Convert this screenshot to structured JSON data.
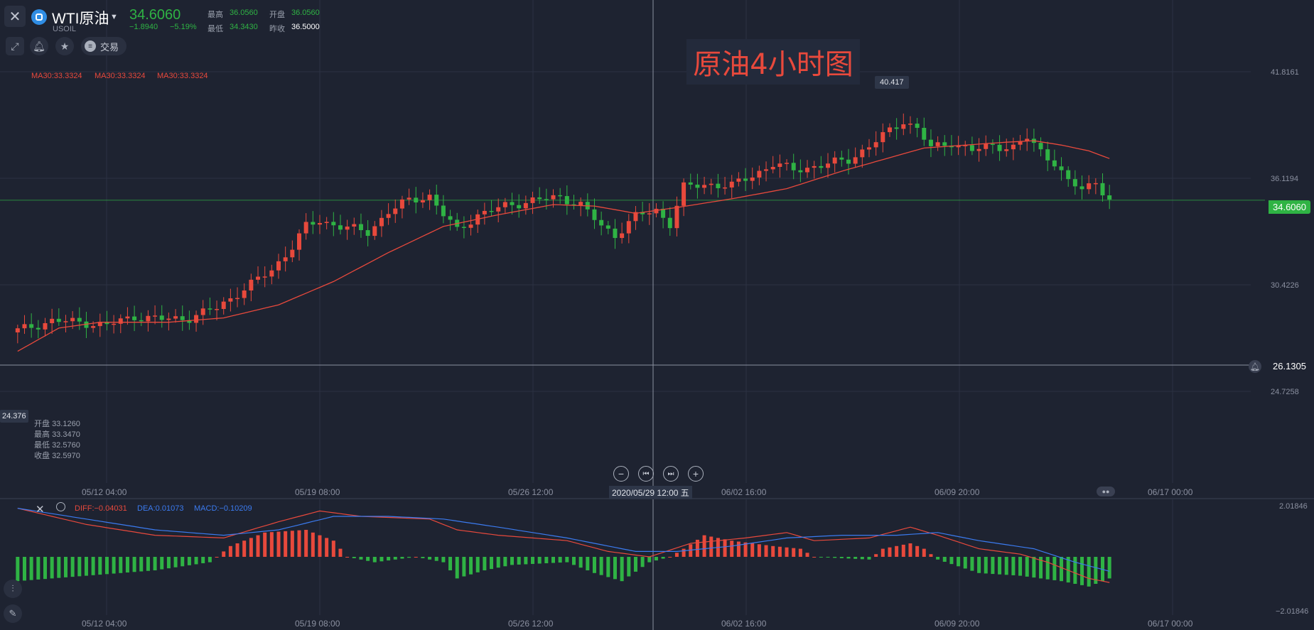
{
  "header": {
    "close_icon": "close-icon",
    "symbol_icon": "instrument-icon",
    "symbol_name": "WTI原油",
    "symbol_code": "USOIL",
    "last_price": "34.6060",
    "change": "−1.8940",
    "change_pct": "−5.19%",
    "stats": [
      {
        "label": "最高",
        "value": "36.0560",
        "color": "#2fb344"
      },
      {
        "label": "开盘",
        "value": "36.0560",
        "color": "#2fb344"
      },
      {
        "label": "最低",
        "value": "34.3430",
        "color": "#2fb344"
      },
      {
        "label": "昨收",
        "value": "36.5000",
        "color": "#ffffff"
      }
    ]
  },
  "toolbar": {
    "draw_icon": "draw-tool-icon",
    "alert_icon": "bell-icon",
    "favorite_icon": "star-icon",
    "trade_label": "交易"
  },
  "ma_legend": [
    "MA30:33.3324",
    "MA30:33.3324",
    "MA30:33.3324"
  ],
  "chart_title": "原油4小时图",
  "price_axis": [
    "41.8161",
    "36.1194",
    "30.4226",
    "24.7258"
  ],
  "current_price_tag": "34.6060",
  "crosshair_price": "26.1305",
  "high_marker": "40.417",
  "low_marker": "24.376",
  "ohlc": [
    {
      "label": "开盘",
      "value": "33.1260"
    },
    {
      "label": "最高",
      "value": "33.3470"
    },
    {
      "label": "最低",
      "value": "32.5760"
    },
    {
      "label": "收盘",
      "value": "32.5970"
    }
  ],
  "date_axis": [
    "05/12 04:00",
    "05/19 08:00",
    "05/26 12:00",
    "06/02 16:00",
    "06/09 20:00",
    "06/17 00:00"
  ],
  "crosshair_date": "2020/05/29 12:00 五",
  "zoom_controls": {
    "zoom_out": "−",
    "first": "⏮",
    "last": "⏭",
    "zoom_in": "+"
  },
  "macd": {
    "diff": "DIFF:−0.04031",
    "dea": "DEA:0.01073",
    "macd": "MACD:−0.10209",
    "axis_top": "2.01846",
    "axis_bottom": "−2.01846"
  },
  "colors": {
    "up": "#e8493c",
    "down": "#2fb344",
    "ma": "#e8493c",
    "dea": "#3b7bf0",
    "background": "#1e2331"
  },
  "chart_data": {
    "type": "candlestick",
    "title": "原油4小时图",
    "ylim": [
      21.0,
      43.5
    ],
    "last": 34.606,
    "high": 40.417,
    "low": 24.376,
    "x_ticks": [
      "05/12 04:00",
      "05/19 08:00",
      "05/26 12:00",
      "06/02 16:00",
      "06/09 20:00",
      "06/17 00:00"
    ],
    "candle_count": 160,
    "close_keypoints": [
      [
        0,
        25.5
      ],
      [
        3,
        25.9
      ],
      [
        6,
        26.3
      ],
      [
        10,
        26.2
      ],
      [
        14,
        26.0
      ],
      [
        18,
        26.6
      ],
      [
        22,
        26.4
      ],
      [
        26,
        26.5
      ],
      [
        30,
        27.2
      ],
      [
        34,
        28.5
      ],
      [
        38,
        29.8
      ],
      [
        41,
        31.4
      ],
      [
        43,
        32.8
      ],
      [
        45,
        33.2
      ],
      [
        48,
        32.8
      ],
      [
        52,
        32.4
      ],
      [
        55,
        33.8
      ],
      [
        58,
        34.6
      ],
      [
        61,
        34.9
      ],
      [
        63,
        33.6
      ],
      [
        65,
        32.5
      ],
      [
        68,
        33.6
      ],
      [
        72,
        34.2
      ],
      [
        76,
        34.6
      ],
      [
        80,
        34.8
      ],
      [
        83,
        34.3
      ],
      [
        86,
        32.8
      ],
      [
        88,
        32.2
      ],
      [
        91,
        33.5
      ],
      [
        94,
        33.9
      ],
      [
        96,
        33.0
      ],
      [
        98,
        35.5
      ],
      [
        102,
        35.7
      ],
      [
        105,
        35.6
      ],
      [
        108,
        36.3
      ],
      [
        111,
        37.1
      ],
      [
        114,
        36.7
      ],
      [
        118,
        37.0
      ],
      [
        122,
        37.4
      ],
      [
        125,
        38.3
      ],
      [
        128,
        39.4
      ],
      [
        130,
        40.1
      ],
      [
        132,
        39.5
      ],
      [
        134,
        38.2
      ],
      [
        137,
        38.6
      ],
      [
        140,
        38.0
      ],
      [
        143,
        38.4
      ],
      [
        146,
        38.2
      ],
      [
        148,
        38.9
      ],
      [
        150,
        38.0
      ],
      [
        152,
        37.2
      ],
      [
        154,
        35.8
      ],
      [
        156,
        35.4
      ],
      [
        158,
        35.9
      ],
      [
        160,
        34.6
      ]
    ],
    "ma30_keypoints": [
      [
        0,
        24.2
      ],
      [
        6,
        25.8
      ],
      [
        12,
        26.2
      ],
      [
        22,
        26.2
      ],
      [
        30,
        26.5
      ],
      [
        38,
        27.4
      ],
      [
        46,
        29.0
      ],
      [
        54,
        31.0
      ],
      [
        62,
        32.8
      ],
      [
        70,
        33.6
      ],
      [
        78,
        34.3
      ],
      [
        84,
        34.2
      ],
      [
        90,
        33.7
      ],
      [
        96,
        34.1
      ],
      [
        104,
        34.7
      ],
      [
        112,
        35.4
      ],
      [
        120,
        36.6
      ],
      [
        126,
        37.4
      ],
      [
        132,
        38.2
      ],
      [
        138,
        38.4
      ],
      [
        144,
        38.6
      ],
      [
        148,
        38.7
      ],
      [
        152,
        38.4
      ],
      [
        156,
        38.0
      ],
      [
        160,
        37.3
      ]
    ],
    "macd_hist_keypoints": [
      [
        0,
        -0.9
      ],
      [
        10,
        -0.7
      ],
      [
        20,
        -0.5
      ],
      [
        28,
        -0.2
      ],
      [
        31,
        0.4
      ],
      [
        36,
        0.9
      ],
      [
        42,
        1.0
      ],
      [
        46,
        0.6
      ],
      [
        48,
        0.0
      ],
      [
        52,
        -0.2
      ],
      [
        58,
        0.0
      ],
      [
        62,
        -0.2
      ],
      [
        64,
        -0.8
      ],
      [
        68,
        -0.5
      ],
      [
        72,
        -0.3
      ],
      [
        80,
        -0.2
      ],
      [
        84,
        -0.6
      ],
      [
        88,
        -0.9
      ],
      [
        92,
        -0.2
      ],
      [
        95,
        0.0
      ],
      [
        97,
        0.3
      ],
      [
        100,
        0.8
      ],
      [
        104,
        0.6
      ],
      [
        110,
        0.4
      ],
      [
        114,
        0.3
      ],
      [
        116,
        0.0
      ],
      [
        124,
        -0.1
      ],
      [
        126,
        0.3
      ],
      [
        130,
        0.5
      ],
      [
        132,
        0.3
      ],
      [
        134,
        -0.1
      ],
      [
        140,
        -0.6
      ],
      [
        146,
        -0.7
      ],
      [
        152,
        -0.9
      ],
      [
        156,
        -1.1
      ],
      [
        160,
        -0.7
      ]
    ],
    "macd_diff_keypoints": [
      [
        0,
        1.8
      ],
      [
        10,
        1.2
      ],
      [
        20,
        0.8
      ],
      [
        30,
        0.7
      ],
      [
        38,
        1.3
      ],
      [
        44,
        1.7
      ],
      [
        50,
        1.5
      ],
      [
        60,
        1.4
      ],
      [
        64,
        1.0
      ],
      [
        70,
        0.8
      ],
      [
        80,
        0.6
      ],
      [
        86,
        0.2
      ],
      [
        92,
        0.0
      ],
      [
        98,
        0.5
      ],
      [
        106,
        0.7
      ],
      [
        112,
        0.9
      ],
      [
        116,
        0.6
      ],
      [
        124,
        0.7
      ],
      [
        130,
        1.1
      ],
      [
        134,
        0.8
      ],
      [
        140,
        0.3
      ],
      [
        146,
        0.1
      ],
      [
        150,
        -0.2
      ],
      [
        156,
        -0.8
      ],
      [
        160,
        -1.0
      ]
    ],
    "macd_dea_keypoints": [
      [
        0,
        1.8
      ],
      [
        10,
        1.4
      ],
      [
        20,
        1.0
      ],
      [
        30,
        0.8
      ],
      [
        38,
        1.0
      ],
      [
        46,
        1.5
      ],
      [
        54,
        1.5
      ],
      [
        62,
        1.4
      ],
      [
        70,
        1.1
      ],
      [
        80,
        0.7
      ],
      [
        90,
        0.2
      ],
      [
        96,
        0.2
      ],
      [
        104,
        0.4
      ],
      [
        112,
        0.7
      ],
      [
        120,
        0.8
      ],
      [
        128,
        0.8
      ],
      [
        134,
        0.9
      ],
      [
        140,
        0.6
      ],
      [
        148,
        0.3
      ],
      [
        154,
        -0.2
      ],
      [
        160,
        -0.6
      ]
    ]
  }
}
